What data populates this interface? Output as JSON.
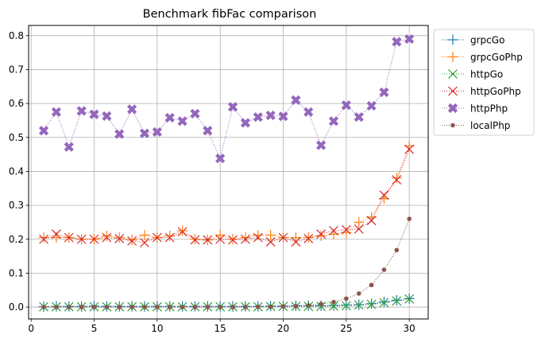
{
  "chart_data": {
    "type": "line",
    "title": "Benchmark fibFac comparison",
    "xlabel": "",
    "ylabel": "",
    "xlim": [
      -0.2,
      31.5
    ],
    "ylim": [
      -0.035,
      0.83
    ],
    "x_ticks": [
      0,
      5,
      10,
      15,
      20,
      25,
      30
    ],
    "y_ticks": [
      0.0,
      0.1,
      0.2,
      0.3,
      0.4,
      0.5,
      0.6,
      0.7,
      0.8
    ],
    "y_tick_labels": [
      "0.0",
      "0.1",
      "0.2",
      "0.3",
      "0.4",
      "0.5",
      "0.6",
      "0.7",
      "0.8"
    ],
    "grid": true,
    "legend_position": "outside-top-right",
    "x": [
      1,
      2,
      3,
      4,
      5,
      6,
      7,
      8,
      9,
      10,
      11,
      12,
      13,
      14,
      15,
      16,
      17,
      18,
      19,
      20,
      21,
      22,
      23,
      24,
      25,
      26,
      27,
      28,
      29,
      30
    ],
    "series": [
      {
        "name": "grpcGo",
        "color": "#1f77b4",
        "marker": "plus-thin",
        "values": [
          0.001,
          0.002,
          0.002,
          0.002,
          0.003,
          0.002,
          0.002,
          0.002,
          0.002,
          0.002,
          0.002,
          0.002,
          0.002,
          0.002,
          0.002,
          0.002,
          0.002,
          0.002,
          0.003,
          0.003,
          0.004,
          0.004,
          0.004,
          0.005,
          0.006,
          0.007,
          0.01,
          0.015,
          0.02,
          0.025
        ]
      },
      {
        "name": "grpcGoPhp",
        "color": "#ff7f0e",
        "marker": "plus-thin",
        "values": [
          0.205,
          0.205,
          0.205,
          0.2,
          0.2,
          0.21,
          0.205,
          0.198,
          0.212,
          0.205,
          0.21,
          0.225,
          0.2,
          0.198,
          0.212,
          0.2,
          0.205,
          0.212,
          0.212,
          0.205,
          0.205,
          0.205,
          0.21,
          0.215,
          0.22,
          0.25,
          0.265,
          0.32,
          0.38,
          0.475
        ]
      },
      {
        "name": "httpGo",
        "color": "#2ca02c",
        "marker": "x",
        "values": [
          0.001,
          0.001,
          0.001,
          0.001,
          0.001,
          0.001,
          0.001,
          0.001,
          0.001,
          0.001,
          0.001,
          0.001,
          0.001,
          0.001,
          0.001,
          0.001,
          0.001,
          0.001,
          0.002,
          0.002,
          0.002,
          0.002,
          0.002,
          0.003,
          0.004,
          0.006,
          0.008,
          0.013,
          0.018,
          0.024
        ]
      },
      {
        "name": "httpGoPhp",
        "color": "#d62728",
        "marker": "x",
        "values": [
          0.2,
          0.215,
          0.205,
          0.2,
          0.2,
          0.205,
          0.202,
          0.195,
          0.19,
          0.205,
          0.205,
          0.222,
          0.198,
          0.198,
          0.2,
          0.198,
          0.2,
          0.205,
          0.192,
          0.205,
          0.192,
          0.202,
          0.215,
          0.225,
          0.228,
          0.23,
          0.255,
          0.33,
          0.375,
          0.465
        ]
      },
      {
        "name": "httpPhp",
        "color": "#9467bd",
        "marker": "x-filled",
        "values": [
          0.52,
          0.575,
          0.472,
          0.578,
          0.568,
          0.563,
          0.51,
          0.583,
          0.512,
          0.516,
          0.558,
          0.548,
          0.57,
          0.52,
          0.438,
          0.59,
          0.543,
          0.56,
          0.565,
          0.562,
          0.61,
          0.575,
          0.477,
          0.548,
          0.595,
          0.56,
          0.593,
          0.633,
          0.782,
          0.79
        ]
      },
      {
        "name": "localPhp",
        "color": "#8c564b",
        "marker": "dot",
        "values": [
          0.0,
          0.0,
          0.0,
          0.0,
          0.0,
          0.0,
          0.0,
          0.0,
          0.0,
          0.0,
          0.0,
          0.0,
          0.0,
          0.0,
          0.0,
          0.0,
          0.0,
          0.001,
          0.001,
          0.002,
          0.003,
          0.005,
          0.009,
          0.015,
          0.025,
          0.04,
          0.065,
          0.11,
          0.168,
          0.26
        ]
      }
    ]
  }
}
